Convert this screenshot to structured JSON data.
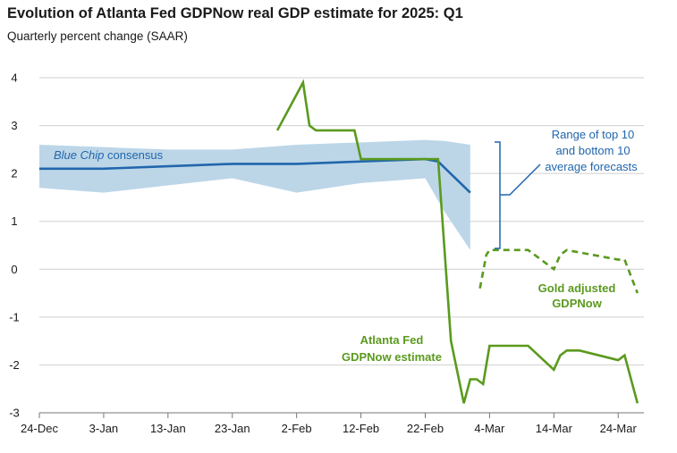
{
  "chart_data": {
    "type": "line",
    "title": "Evolution of Atlanta Fed GDPNow real GDP estimate for 2025: Q1",
    "subtitle": "Quarterly percent change (SAAR)",
    "xlabel": "",
    "ylabel": "",
    "ylim": [
      -3,
      4
    ],
    "yticks": [
      "4",
      "3",
      "2",
      "1",
      "0",
      "-1",
      "-2",
      "-3"
    ],
    "x_tick_labels": [
      "24-Dec",
      "3-Jan",
      "13-Jan",
      "23-Jan",
      "2-Feb",
      "12-Feb",
      "22-Feb",
      "4-Mar",
      "14-Mar",
      "24-Mar"
    ],
    "x_tick_days": [
      0,
      10,
      20,
      30,
      40,
      50,
      60,
      70,
      80,
      90
    ],
    "xlim": [
      0,
      94
    ],
    "grid": "horizontal",
    "colors": {
      "blue": "#2166ac",
      "band": "#bcd6e8",
      "green": "#5a9a1e",
      "axis": "#777777",
      "grid": "#cfcfcf"
    },
    "band": {
      "name": "Range of top 10 and bottom 10 average forecasts",
      "x": [
        0,
        10,
        20,
        30,
        40,
        50,
        60,
        63,
        67
      ],
      "upper": [
        2.6,
        2.55,
        2.5,
        2.5,
        2.6,
        2.65,
        2.7,
        2.68,
        2.6
      ],
      "lower": [
        1.7,
        1.6,
        1.75,
        1.9,
        1.6,
        1.8,
        1.9,
        1.2,
        0.4
      ]
    },
    "series": [
      {
        "name": "Blue Chip consensus",
        "style": "solid",
        "color": "#2166ac",
        "x": [
          0,
          10,
          20,
          30,
          40,
          50,
          60,
          62,
          67
        ],
        "y": [
          2.1,
          2.1,
          2.15,
          2.2,
          2.2,
          2.25,
          2.3,
          2.25,
          1.6
        ]
      },
      {
        "name": "Atlanta Fed GDPNow estimate",
        "style": "solid",
        "color": "#5a9a1e",
        "x": [
          37,
          41,
          42,
          43,
          49,
          50,
          61,
          62,
          64,
          66,
          67,
          68,
          69,
          70,
          76,
          80,
          81,
          82,
          84,
          90,
          91,
          93
        ],
        "y": [
          2.9,
          3.9,
          3.0,
          2.9,
          2.9,
          2.3,
          2.3,
          2.3,
          -1.5,
          -2.8,
          -2.3,
          -2.3,
          -2.4,
          -1.6,
          -1.6,
          -2.1,
          -1.8,
          -1.7,
          -1.7,
          -1.9,
          -1.8,
          -2.8
        ]
      },
      {
        "name": "Gold adjusted GDPNow",
        "style": "dashed",
        "color": "#5a9a1e",
        "x": [
          68.5,
          69.5,
          70,
          76,
          80,
          81,
          82,
          84,
          90,
          91,
          93
        ],
        "y": [
          -0.4,
          0.3,
          0.4,
          0.4,
          0.0,
          0.3,
          0.4,
          0.35,
          0.2,
          0.2,
          -0.5
        ]
      }
    ],
    "annotations": {
      "blue_chip_italic": "Blue Chip",
      "blue_chip_rest": " consensus",
      "range_line1": "Range of top 10",
      "range_line2": "and bottom 10",
      "range_line3": "average forecasts",
      "gold_line1": "Gold adjusted",
      "gold_line2": "GDPNow",
      "gdpnow_line1": "Atlanta Fed",
      "gdpnow_line2": "GDPNow estimate"
    }
  }
}
